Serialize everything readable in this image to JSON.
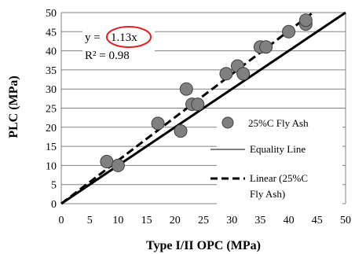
{
  "chart_data": {
    "type": "scatter",
    "xlabel": "Type I/II OPC (MPa)",
    "ylabel": "PLC (MPa)",
    "xlim": [
      0,
      50
    ],
    "ylim": [
      0,
      50
    ],
    "xticks": [
      "0",
      "5",
      "10",
      "15",
      "20",
      "25",
      "30",
      "35",
      "40",
      "45",
      "50"
    ],
    "yticks": [
      "0",
      "5",
      "10",
      "15",
      "20",
      "25",
      "30",
      "35",
      "40",
      "45",
      "50"
    ],
    "grid": "horizontal",
    "series": [
      {
        "name": "25%C Fly Ash",
        "marker": "circle",
        "color": "#808080",
        "x": [
          8,
          10,
          17,
          21,
          22,
          23,
          24,
          29,
          31,
          32,
          35,
          36,
          40,
          43,
          43
        ],
        "y": [
          11,
          10,
          21,
          19,
          30,
          26,
          26,
          34,
          36,
          34,
          41,
          41,
          45,
          47,
          48
        ]
      }
    ],
    "lines": [
      {
        "name": "Equality Line",
        "style": "solid",
        "slope": 1.0
      },
      {
        "name": "Linear (25%C Fly Ash)",
        "style": "dashed",
        "slope": 1.13
      }
    ],
    "legend": {
      "placement": "right",
      "items": [
        "25%C Fly Ash",
        "Equality Line",
        "Linear (25%C",
        "Fly Ash)"
      ]
    },
    "annotation": {
      "equation_prefix": "y = ",
      "equation_value": "1.13x",
      "r2_label": "R² = 0.98",
      "highlight_color": "#e02020"
    }
  }
}
